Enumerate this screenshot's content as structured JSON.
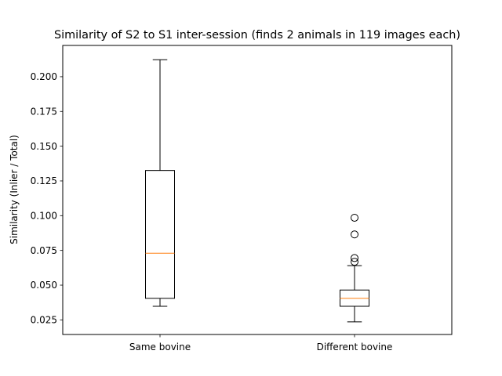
{
  "chart_data": {
    "type": "box",
    "title": "Similarity of S2 to S1 inter-session (finds 2 animals in 119 images each)",
    "xlabel": "",
    "ylabel": "Similarity  (Inlier / Total)",
    "ylim": [
      0.0145,
      0.2225
    ],
    "yticks": [
      0.025,
      0.05,
      0.075,
      0.1,
      0.125,
      0.15,
      0.175,
      0.2
    ],
    "ytick_labels": [
      "0.025",
      "0.050",
      "0.075",
      "0.100",
      "0.125",
      "0.150",
      "0.175",
      "0.200"
    ],
    "categories": [
      "Same bovine",
      "Different bovine"
    ],
    "grid": false,
    "boxes": [
      {
        "label": "Same bovine",
        "whisker_low": 0.0348,
        "q1": 0.0405,
        "median": 0.073,
        "q3": 0.1325,
        "whisker_high": 0.2122,
        "outliers": []
      },
      {
        "label": "Different bovine",
        "whisker_low": 0.0236,
        "q1": 0.0348,
        "median": 0.0405,
        "q3": 0.0465,
        "whisker_high": 0.064,
        "outliers": [
          0.0668,
          0.0695,
          0.0865,
          0.0985
        ]
      }
    ],
    "colors": {
      "box": "#000000",
      "median": "#ff7f0e",
      "whisker": "#000000",
      "outlier": "#000000"
    }
  }
}
